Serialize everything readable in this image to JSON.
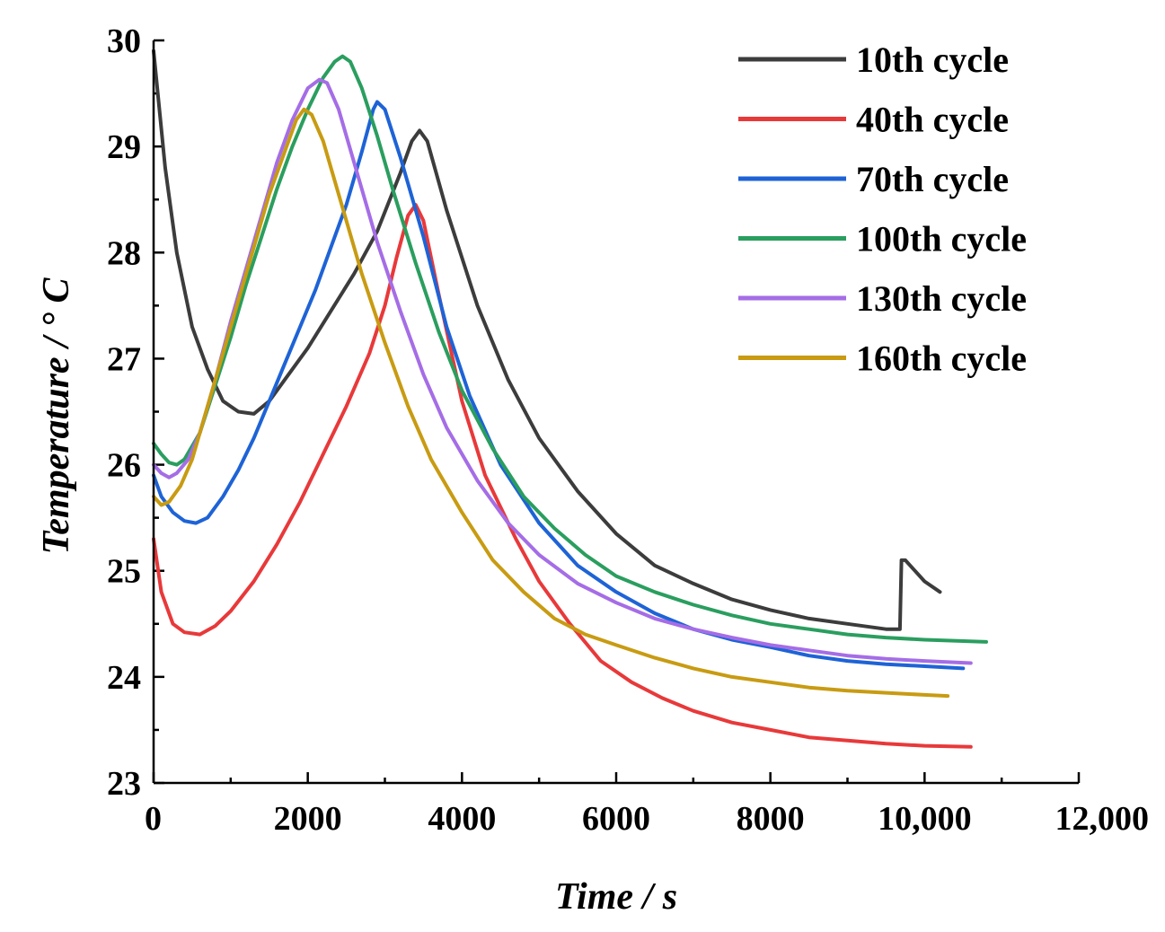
{
  "chart_data": {
    "type": "line",
    "title": "",
    "xlabel": "Time / s",
    "ylabel": "Temperature / ° C",
    "xlim": [
      0,
      12000
    ],
    "ylim": [
      23,
      30
    ],
    "xticks": [
      0,
      2000,
      4000,
      6000,
      8000,
      10000,
      12000
    ],
    "xtick_labels": [
      "0",
      "2000",
      "4000",
      "6000",
      "8000",
      "10,000",
      "12,000"
    ],
    "yticks": [
      23,
      24,
      25,
      26,
      27,
      28,
      29,
      30
    ],
    "ytick_labels": [
      "23",
      "24",
      "25",
      "26",
      "27",
      "28",
      "29",
      "30"
    ],
    "legend_position": "top-right",
    "grid": false,
    "series": [
      {
        "name": "10th cycle",
        "color": "#3c3c3c",
        "points": [
          [
            0,
            29.9
          ],
          [
            150,
            28.8
          ],
          [
            300,
            28.0
          ],
          [
            500,
            27.3
          ],
          [
            700,
            26.9
          ],
          [
            900,
            26.6
          ],
          [
            1100,
            26.5
          ],
          [
            1300,
            26.48
          ],
          [
            1500,
            26.6
          ],
          [
            1700,
            26.8
          ],
          [
            2000,
            27.1
          ],
          [
            2300,
            27.45
          ],
          [
            2600,
            27.8
          ],
          [
            2900,
            28.2
          ],
          [
            3200,
            28.75
          ],
          [
            3350,
            29.05
          ],
          [
            3450,
            29.15
          ],
          [
            3550,
            29.05
          ],
          [
            3800,
            28.4
          ],
          [
            4200,
            27.5
          ],
          [
            4600,
            26.8
          ],
          [
            5000,
            26.25
          ],
          [
            5500,
            25.75
          ],
          [
            6000,
            25.35
          ],
          [
            6500,
            25.05
          ],
          [
            7000,
            24.88
          ],
          [
            7500,
            24.73
          ],
          [
            8000,
            24.63
          ],
          [
            8500,
            24.55
          ],
          [
            9000,
            24.5
          ],
          [
            9500,
            24.45
          ],
          [
            9680,
            24.45
          ],
          [
            9700,
            25.1
          ],
          [
            9750,
            25.1
          ],
          [
            10000,
            24.9
          ],
          [
            10200,
            24.8
          ]
        ]
      },
      {
        "name": "40th cycle",
        "color": "#e8393a",
        "points": [
          [
            0,
            25.3
          ],
          [
            100,
            24.8
          ],
          [
            250,
            24.5
          ],
          [
            400,
            24.42
          ],
          [
            600,
            24.4
          ],
          [
            800,
            24.48
          ],
          [
            1000,
            24.62
          ],
          [
            1300,
            24.9
          ],
          [
            1600,
            25.25
          ],
          [
            1900,
            25.65
          ],
          [
            2200,
            26.1
          ],
          [
            2500,
            26.55
          ],
          [
            2800,
            27.05
          ],
          [
            3000,
            27.5
          ],
          [
            3150,
            27.95
          ],
          [
            3300,
            28.35
          ],
          [
            3400,
            28.45
          ],
          [
            3500,
            28.3
          ],
          [
            3700,
            27.6
          ],
          [
            4000,
            26.6
          ],
          [
            4300,
            25.9
          ],
          [
            4700,
            25.3
          ],
          [
            5000,
            24.9
          ],
          [
            5400,
            24.5
          ],
          [
            5800,
            24.15
          ],
          [
            6200,
            23.95
          ],
          [
            6600,
            23.8
          ],
          [
            7000,
            23.68
          ],
          [
            7500,
            23.57
          ],
          [
            8000,
            23.5
          ],
          [
            8500,
            23.43
          ],
          [
            9000,
            23.4
          ],
          [
            9500,
            23.37
          ],
          [
            10000,
            23.35
          ],
          [
            10600,
            23.34
          ]
        ]
      },
      {
        "name": "70th cycle",
        "color": "#1e63d6",
        "points": [
          [
            0,
            25.9
          ],
          [
            100,
            25.7
          ],
          [
            250,
            25.55
          ],
          [
            400,
            25.47
          ],
          [
            550,
            25.45
          ],
          [
            700,
            25.5
          ],
          [
            900,
            25.7
          ],
          [
            1100,
            25.95
          ],
          [
            1300,
            26.25
          ],
          [
            1500,
            26.6
          ],
          [
            1700,
            26.95
          ],
          [
            1900,
            27.3
          ],
          [
            2100,
            27.65
          ],
          [
            2300,
            28.05
          ],
          [
            2500,
            28.45
          ],
          [
            2700,
            28.95
          ],
          [
            2850,
            29.35
          ],
          [
            2900,
            29.42
          ],
          [
            3000,
            29.35
          ],
          [
            3200,
            28.9
          ],
          [
            3500,
            28.15
          ],
          [
            3800,
            27.3
          ],
          [
            4100,
            26.65
          ],
          [
            4500,
            26.0
          ],
          [
            5000,
            25.45
          ],
          [
            5500,
            25.05
          ],
          [
            6000,
            24.8
          ],
          [
            6500,
            24.6
          ],
          [
            7000,
            24.45
          ],
          [
            7500,
            24.35
          ],
          [
            8000,
            24.28
          ],
          [
            8500,
            24.2
          ],
          [
            9000,
            24.15
          ],
          [
            9500,
            24.12
          ],
          [
            10000,
            24.1
          ],
          [
            10500,
            24.08
          ]
        ]
      },
      {
        "name": "100th cycle",
        "color": "#2a9e5f",
        "points": [
          [
            0,
            26.2
          ],
          [
            100,
            26.1
          ],
          [
            200,
            26.02
          ],
          [
            300,
            26.0
          ],
          [
            400,
            26.05
          ],
          [
            600,
            26.3
          ],
          [
            800,
            26.75
          ],
          [
            1000,
            27.2
          ],
          [
            1200,
            27.7
          ],
          [
            1400,
            28.15
          ],
          [
            1600,
            28.6
          ],
          [
            1800,
            29.0
          ],
          [
            2000,
            29.35
          ],
          [
            2200,
            29.65
          ],
          [
            2350,
            29.8
          ],
          [
            2450,
            29.85
          ],
          [
            2550,
            29.8
          ],
          [
            2700,
            29.55
          ],
          [
            2900,
            29.1
          ],
          [
            3100,
            28.6
          ],
          [
            3400,
            27.9
          ],
          [
            3700,
            27.25
          ],
          [
            4000,
            26.7
          ],
          [
            4400,
            26.15
          ],
          [
            4800,
            25.7
          ],
          [
            5200,
            25.4
          ],
          [
            5600,
            25.15
          ],
          [
            6000,
            24.95
          ],
          [
            6500,
            24.8
          ],
          [
            7000,
            24.68
          ],
          [
            7500,
            24.58
          ],
          [
            8000,
            24.5
          ],
          [
            8500,
            24.45
          ],
          [
            9000,
            24.4
          ],
          [
            9500,
            24.37
          ],
          [
            10000,
            24.35
          ],
          [
            10800,
            24.33
          ]
        ]
      },
      {
        "name": "130th cycle",
        "color": "#a56de6",
        "points": [
          [
            0,
            26.0
          ],
          [
            100,
            25.92
          ],
          [
            200,
            25.88
          ],
          [
            300,
            25.92
          ],
          [
            450,
            26.05
          ],
          [
            600,
            26.3
          ],
          [
            800,
            26.8
          ],
          [
            1000,
            27.35
          ],
          [
            1200,
            27.85
          ],
          [
            1400,
            28.35
          ],
          [
            1600,
            28.85
          ],
          [
            1800,
            29.25
          ],
          [
            2000,
            29.55
          ],
          [
            2150,
            29.63
          ],
          [
            2250,
            29.6
          ],
          [
            2400,
            29.35
          ],
          [
            2600,
            28.85
          ],
          [
            2900,
            28.1
          ],
          [
            3200,
            27.45
          ],
          [
            3500,
            26.85
          ],
          [
            3800,
            26.35
          ],
          [
            4200,
            25.85
          ],
          [
            4600,
            25.45
          ],
          [
            5000,
            25.15
          ],
          [
            5500,
            24.88
          ],
          [
            6000,
            24.7
          ],
          [
            6500,
            24.55
          ],
          [
            7000,
            24.45
          ],
          [
            7500,
            24.37
          ],
          [
            8000,
            24.3
          ],
          [
            8500,
            24.25
          ],
          [
            9000,
            24.2
          ],
          [
            9500,
            24.17
          ],
          [
            10000,
            24.15
          ],
          [
            10600,
            24.13
          ]
        ]
      },
      {
        "name": "160th cycle",
        "color": "#c89b12",
        "points": [
          [
            0,
            25.7
          ],
          [
            100,
            25.62
          ],
          [
            200,
            25.65
          ],
          [
            350,
            25.8
          ],
          [
            500,
            26.05
          ],
          [
            700,
            26.55
          ],
          [
            900,
            27.05
          ],
          [
            1100,
            27.55
          ],
          [
            1300,
            28.05
          ],
          [
            1500,
            28.55
          ],
          [
            1700,
            28.95
          ],
          [
            1850,
            29.25
          ],
          [
            1950,
            29.35
          ],
          [
            2050,
            29.3
          ],
          [
            2200,
            29.05
          ],
          [
            2400,
            28.55
          ],
          [
            2700,
            27.8
          ],
          [
            3000,
            27.15
          ],
          [
            3300,
            26.55
          ],
          [
            3600,
            26.05
          ],
          [
            4000,
            25.55
          ],
          [
            4400,
            25.1
          ],
          [
            4800,
            24.8
          ],
          [
            5200,
            24.55
          ],
          [
            5600,
            24.4
          ],
          [
            6000,
            24.3
          ],
          [
            6500,
            24.18
          ],
          [
            7000,
            24.08
          ],
          [
            7500,
            24.0
          ],
          [
            8000,
            23.95
          ],
          [
            8500,
            23.9
          ],
          [
            9000,
            23.87
          ],
          [
            9500,
            23.85
          ],
          [
            10000,
            23.83
          ],
          [
            10300,
            23.82
          ]
        ]
      }
    ]
  }
}
